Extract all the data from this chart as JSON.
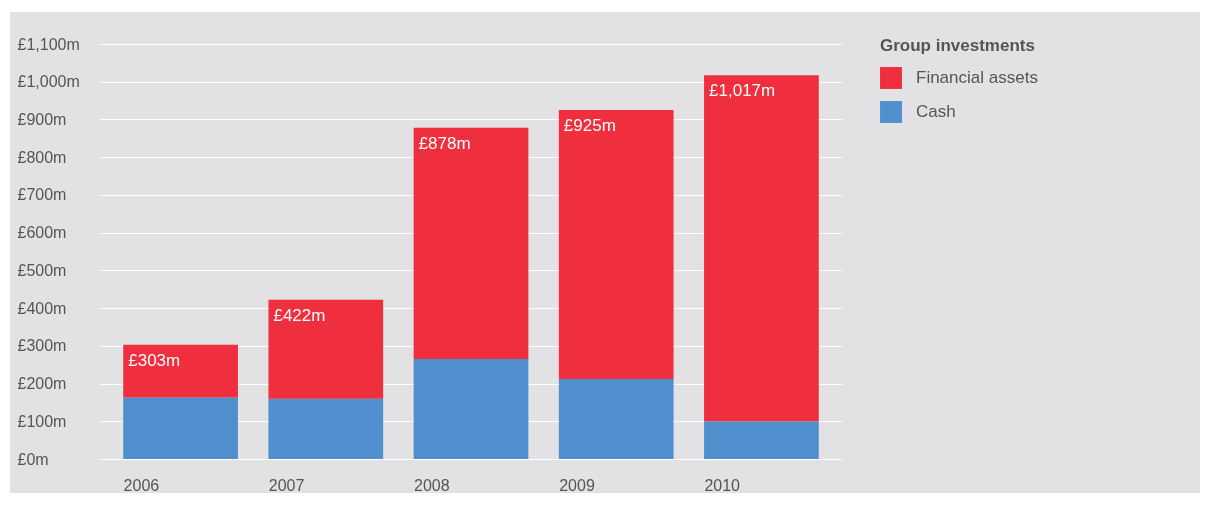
{
  "chart_data": {
    "type": "bar",
    "stacked": true,
    "legend_title": "Group investments",
    "legend": "top right",
    "categories": [
      "2006",
      "2007",
      "2008",
      "2009",
      "2010"
    ],
    "series": [
      {
        "name": "Cash",
        "color": "#4f8fcd",
        "values": [
          163,
          160,
          265,
          212,
          100
        ]
      },
      {
        "name": "Financial assets",
        "color": "#ef2e3e",
        "values": [
          140,
          262,
          613,
          713,
          917
        ]
      }
    ],
    "totals": [
      "£303m",
      "£422m",
      "£878m",
      "£925m",
      "£1,017m"
    ],
    "ylim": [
      0,
      1100
    ],
    "yticks": [
      {
        "value": 0,
        "label": "£0m"
      },
      {
        "value": 100,
        "label": "£100m"
      },
      {
        "value": 200,
        "label": "£200m"
      },
      {
        "value": 300,
        "label": "£300m"
      },
      {
        "value": 400,
        "label": "£400m"
      },
      {
        "value": 500,
        "label": "£500m"
      },
      {
        "value": 600,
        "label": "£600m"
      },
      {
        "value": 700,
        "label": "£700m"
      },
      {
        "value": 800,
        "label": "£800m"
      },
      {
        "value": 900,
        "label": "£900m"
      },
      {
        "value": 1000,
        "label": "£1,000m"
      },
      {
        "value": 1100,
        "label": "£1,100m"
      }
    ],
    "grid": "y"
  }
}
